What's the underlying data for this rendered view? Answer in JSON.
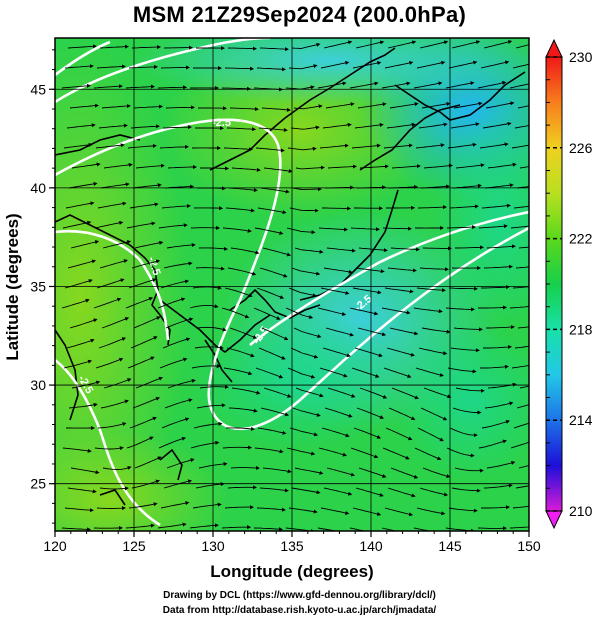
{
  "title": "MSM 21Z29Sep2024 (200.0hPa)",
  "x_axis": {
    "label": "Longitude (degrees)",
    "ticks": [
      "120",
      "125",
      "130",
      "135",
      "140",
      "145",
      "150"
    ],
    "range": [
      120,
      150
    ]
  },
  "y_axis": {
    "label": "Latitude  (degrees)",
    "ticks": [
      "25",
      "30",
      "35",
      "40",
      "45"
    ],
    "range": [
      22.6,
      47.6
    ]
  },
  "colorbar": {
    "min": 210,
    "max": 230,
    "labels": [
      "230",
      "226",
      "222",
      "218",
      "214",
      "210"
    ],
    "stops": [
      "#d81bd8",
      "#1c0fd8",
      "#1d73e8",
      "#22c8e6",
      "#18e0a8",
      "#16d04a",
      "#5cd81c",
      "#b8e020",
      "#f0d020",
      "#f87e1c",
      "#f01818"
    ]
  },
  "contour_labels": [
    "-2.5",
    "-2.5",
    "-2.5",
    "-2.5",
    "-2.5"
  ],
  "footer": {
    "line1": "Drawing by DCL (https://www.gfd-dennou.org/library/dcl/)",
    "line2": "Data from http://database.rish.kyoto-u.ac.jp/arch/jmadata/"
  },
  "colors": {
    "contour": "#ffffff",
    "streamline": "#000000",
    "coast": "#000000",
    "grid": "#000000"
  }
}
